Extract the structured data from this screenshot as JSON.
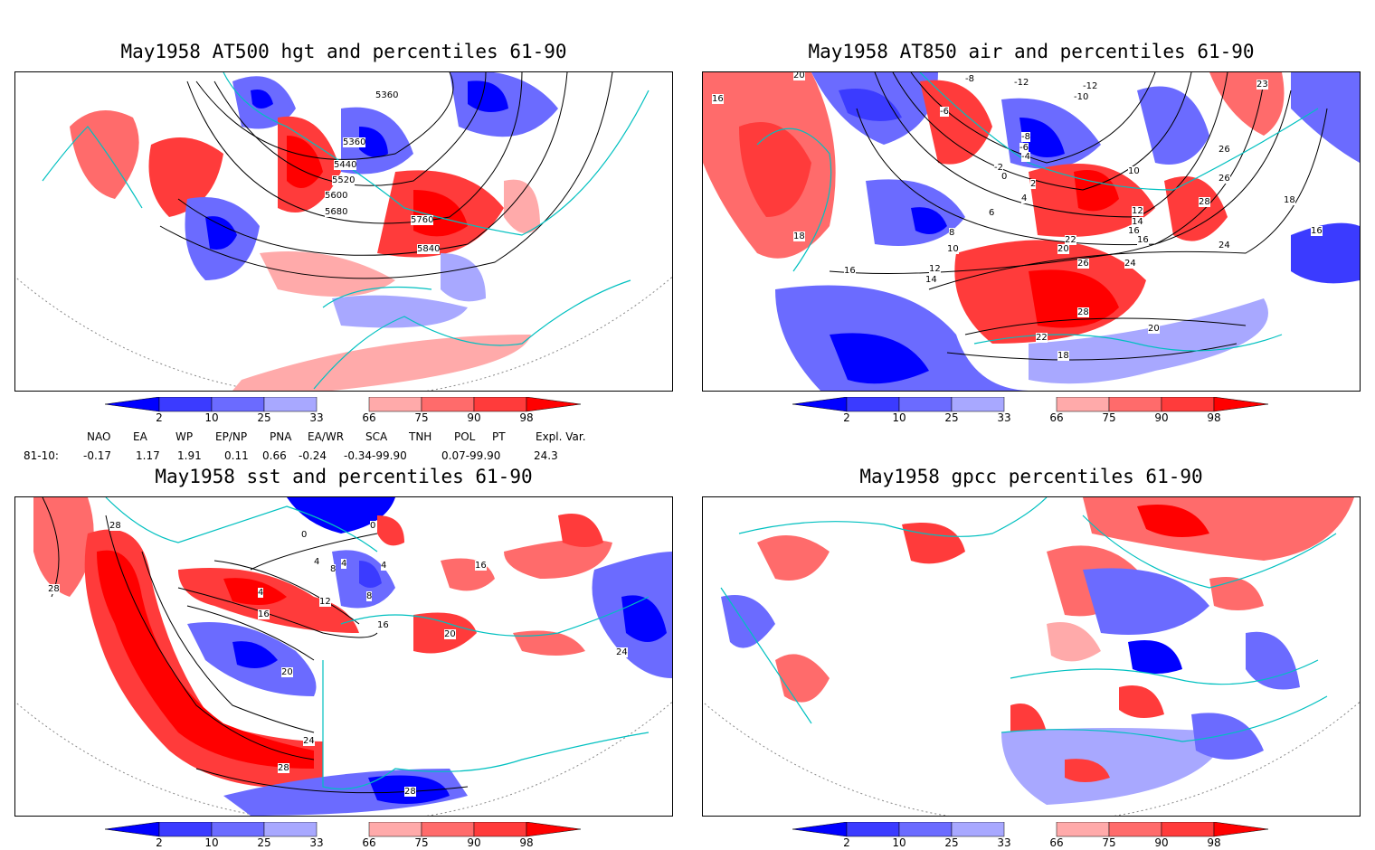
{
  "titles": {
    "p1": "May1958 AT500 hgt and percentiles 61-90",
    "p2": "May1958 AT850 air and percentiles 61-90",
    "p3": "May1958 sst and percentiles 61-90",
    "p4": "May1958 gpcc percentiles 61-90"
  },
  "colorbar": {
    "labels": [
      "2",
      "10",
      "25",
      "33",
      "66",
      "75",
      "90",
      "98"
    ],
    "colors": [
      "#0000ff",
      "#3b3bff",
      "#6b6bff",
      "#a8a8ff",
      "#ffaaaa",
      "#ff6b6b",
      "#ff3b3b",
      "#ff0000"
    ]
  },
  "indices": {
    "names": [
      "NAO",
      "EA",
      "WP",
      "EP/NP",
      "PNA",
      "EA/WR",
      "SCA",
      "TNH",
      "POL",
      "PT",
      "Expl. Var."
    ],
    "row_label": "81-10:",
    "values": [
      "-0.17",
      "1.17",
      "1.91",
      "0.11",
      "0.66",
      "-0.24",
      "-0.34-99.90",
      "0.07-99.90",
      "24.3"
    ]
  },
  "contour_labels": {
    "p1": [
      "5360",
      "5360",
      "5440",
      "5520",
      "5600",
      "5680",
      "5760",
      "5840"
    ],
    "p2": [
      "20",
      "16",
      "-8",
      "-12",
      "-6",
      "-12",
      "-10",
      "-8",
      "-6",
      "-4",
      "-2",
      "0",
      "2",
      "4",
      "6",
      "8",
      "10",
      "10",
      "12",
      "14",
      "16",
      "16",
      "18",
      "18",
      "20",
      "22",
      "24",
      "26",
      "26",
      "28",
      "28",
      "26",
      "24",
      "22",
      "18",
      "20",
      "23",
      "16",
      "12",
      "14",
      "16"
    ],
    "p3": [
      "28",
      "28",
      "0",
      "4",
      "0",
      "4",
      "8",
      "4",
      "8",
      "4",
      "12",
      "16",
      "16",
      "20",
      "20",
      "24",
      "28",
      "28",
      "16",
      "24"
    ]
  },
  "map_colors": {
    "land_outline": "#00c0c0",
    "grid": "#888888"
  }
}
